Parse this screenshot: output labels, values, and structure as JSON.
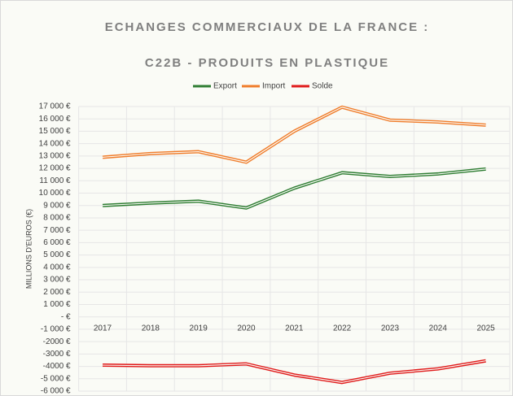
{
  "chart_data": {
    "type": "line",
    "title": [
      "ECHANGES COMMERCIAUX DE LA FRANCE :",
      "C22B - PRODUITS EN PLASTIQUE"
    ],
    "y_label": "MILLIONS D'EUROS (€)",
    "categories": [
      "2017",
      "2018",
      "2019",
      "2020",
      "2021",
      "2022",
      "2023",
      "2024",
      "2025"
    ],
    "series": [
      {
        "name": "Export",
        "color": "#2e7d32",
        "values": [
          9000,
          9200,
          9350,
          8800,
          10400,
          11650,
          11350,
          11550,
          11950
        ]
      },
      {
        "name": "Import",
        "color": "#f07c2a",
        "values": [
          12900,
          13200,
          13350,
          12500,
          15000,
          16950,
          15900,
          15750,
          15500
        ]
      },
      {
        "name": "Solde",
        "color": "#e01a1a",
        "values": [
          -3900,
          -3950,
          -3950,
          -3800,
          -4700,
          -5300,
          -4550,
          -4200,
          -3550
        ]
      }
    ],
    "ylim": [
      -6000,
      17000
    ],
    "yticks": [
      {
        "value": -6000,
        "label": "-6 000 €"
      },
      {
        "value": -5000,
        "label": "-5 000 €"
      },
      {
        "value": -4000,
        "label": "-4000 €"
      },
      {
        "value": -3000,
        "label": "-3000 €"
      },
      {
        "value": -2000,
        "label": "-2000 €"
      },
      {
        "value": -1000,
        "label": "-1 000 €"
      },
      {
        "value": 0,
        "label": "- €"
      },
      {
        "value": 1000,
        "label": "1 000 €"
      },
      {
        "value": 2000,
        "label": "2 000 €"
      },
      {
        "value": 3000,
        "label": "3 000 €"
      },
      {
        "value": 4000,
        "label": "4 000 €"
      },
      {
        "value": 5000,
        "label": "5 000 €"
      },
      {
        "value": 6000,
        "label": "6 000 €"
      },
      {
        "value": 7000,
        "label": "7 000 €"
      },
      {
        "value": 8000,
        "label": "8 000 €"
      },
      {
        "value": 9000,
        "label": "9 000 €"
      },
      {
        "value": 10000,
        "label": "10 000 €"
      },
      {
        "value": 11000,
        "label": "11 000 €"
      },
      {
        "value": 12000,
        "label": "12 000 €"
      },
      {
        "value": 13000,
        "label": "13 000 €"
      },
      {
        "value": 14000,
        "label": "14 000 €"
      },
      {
        "value": 15000,
        "label": "15 000 €"
      },
      {
        "value": 16000,
        "label": "16 000 €"
      },
      {
        "value": 17000,
        "label": "17 000 €"
      }
    ],
    "grid": true,
    "legend": "top"
  }
}
